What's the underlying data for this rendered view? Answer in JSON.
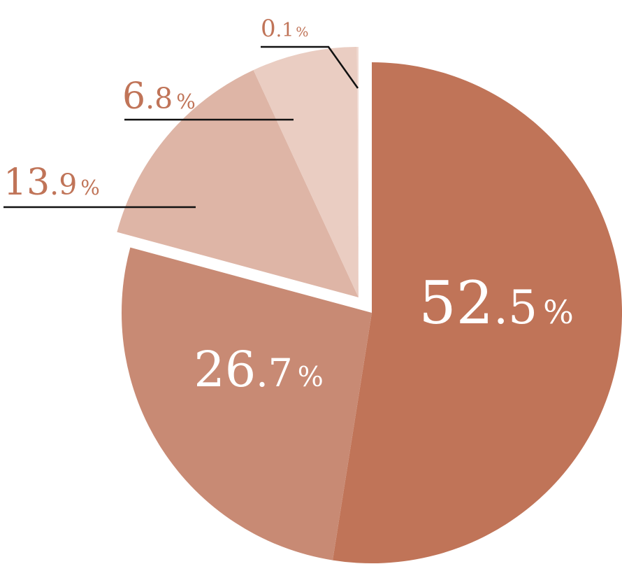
{
  "chart_data": {
    "type": "pie",
    "title": "",
    "slices": [
      {
        "label": "52.5%",
        "value": 52.5,
        "int": "52",
        "dec": ".5",
        "color": "#c07458",
        "text_color": "#ffffff",
        "label_style": "inside"
      },
      {
        "label": "26.7%",
        "value": 26.7,
        "int": "26",
        "dec": ".7",
        "color": "#c88a74",
        "text_color": "#ffffff",
        "label_style": "inside"
      },
      {
        "label": "13.9%",
        "value": 13.9,
        "int": "13",
        "dec": ".9",
        "color": "#deb5a6",
        "text_color": "#c07458",
        "label_style": "leader"
      },
      {
        "label": "6.8%",
        "value": 6.8,
        "int": "6",
        "dec": ".8",
        "color": "#eacdc2",
        "text_color": "#c07458",
        "label_style": "leader"
      },
      {
        "label": "0.1%",
        "value": 0.1,
        "int": "0",
        "dec": ".1",
        "color": "#f1dbd3",
        "text_color": "#c07458",
        "label_style": "leader"
      }
    ],
    "percent_sign": "%",
    "start_angle": "12 o'clock",
    "direction": "clockwise",
    "exploded": "first two slices offset from the rest",
    "legend": "none"
  }
}
